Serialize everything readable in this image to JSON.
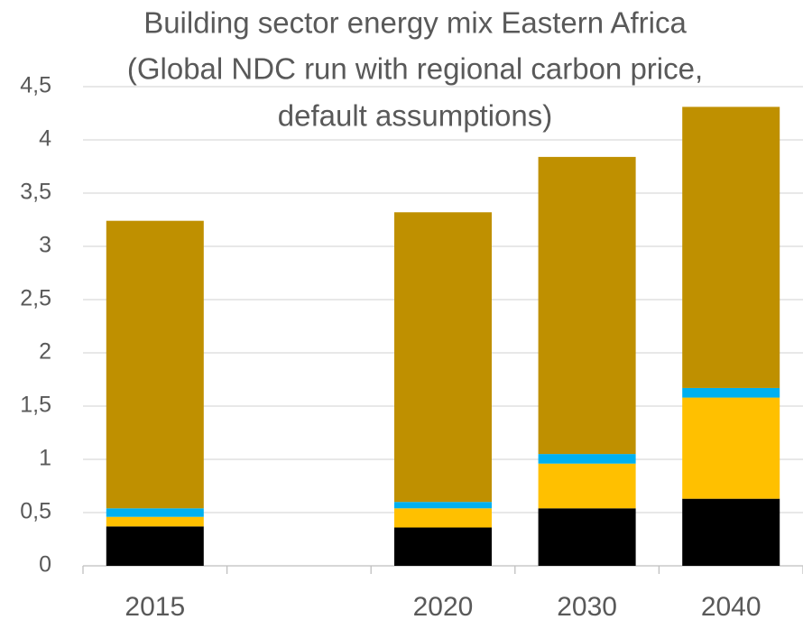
{
  "chart_data": {
    "type": "stacked_bar",
    "title": [
      "Building sector energy mix Eastern Africa",
      "(Global NDC run with regional carbon price,",
      "default assumptions)"
    ],
    "categories": [
      "2015",
      null,
      "2020",
      "2030",
      "2040"
    ],
    "series": [
      {
        "color": "#000000",
        "values": [
          0.37,
          null,
          0.36,
          0.54,
          0.63
        ]
      },
      {
        "color": "#ffc000",
        "values": [
          0.09,
          null,
          0.18,
          0.42,
          0.95
        ]
      },
      {
        "color": "#00b0f0",
        "values": [
          0.08,
          null,
          0.06,
          0.09,
          0.09
        ]
      },
      {
        "color": "#bf9000",
        "values": [
          2.7,
          null,
          2.72,
          2.79,
          2.64
        ]
      }
    ],
    "ylim": [
      0,
      4.5
    ],
    "yticks": [
      0,
      {
        "value": 0.5,
        "label": "0,5"
      },
      1,
      {
        "value": 1.5,
        "label": "1,5"
      },
      2,
      {
        "value": 2.5,
        "label": "2,5"
      },
      3,
      {
        "value": 3.5,
        "label": "3,5"
      },
      4,
      {
        "value": 4.5,
        "label": "4,5"
      }
    ],
    "grid": true
  }
}
